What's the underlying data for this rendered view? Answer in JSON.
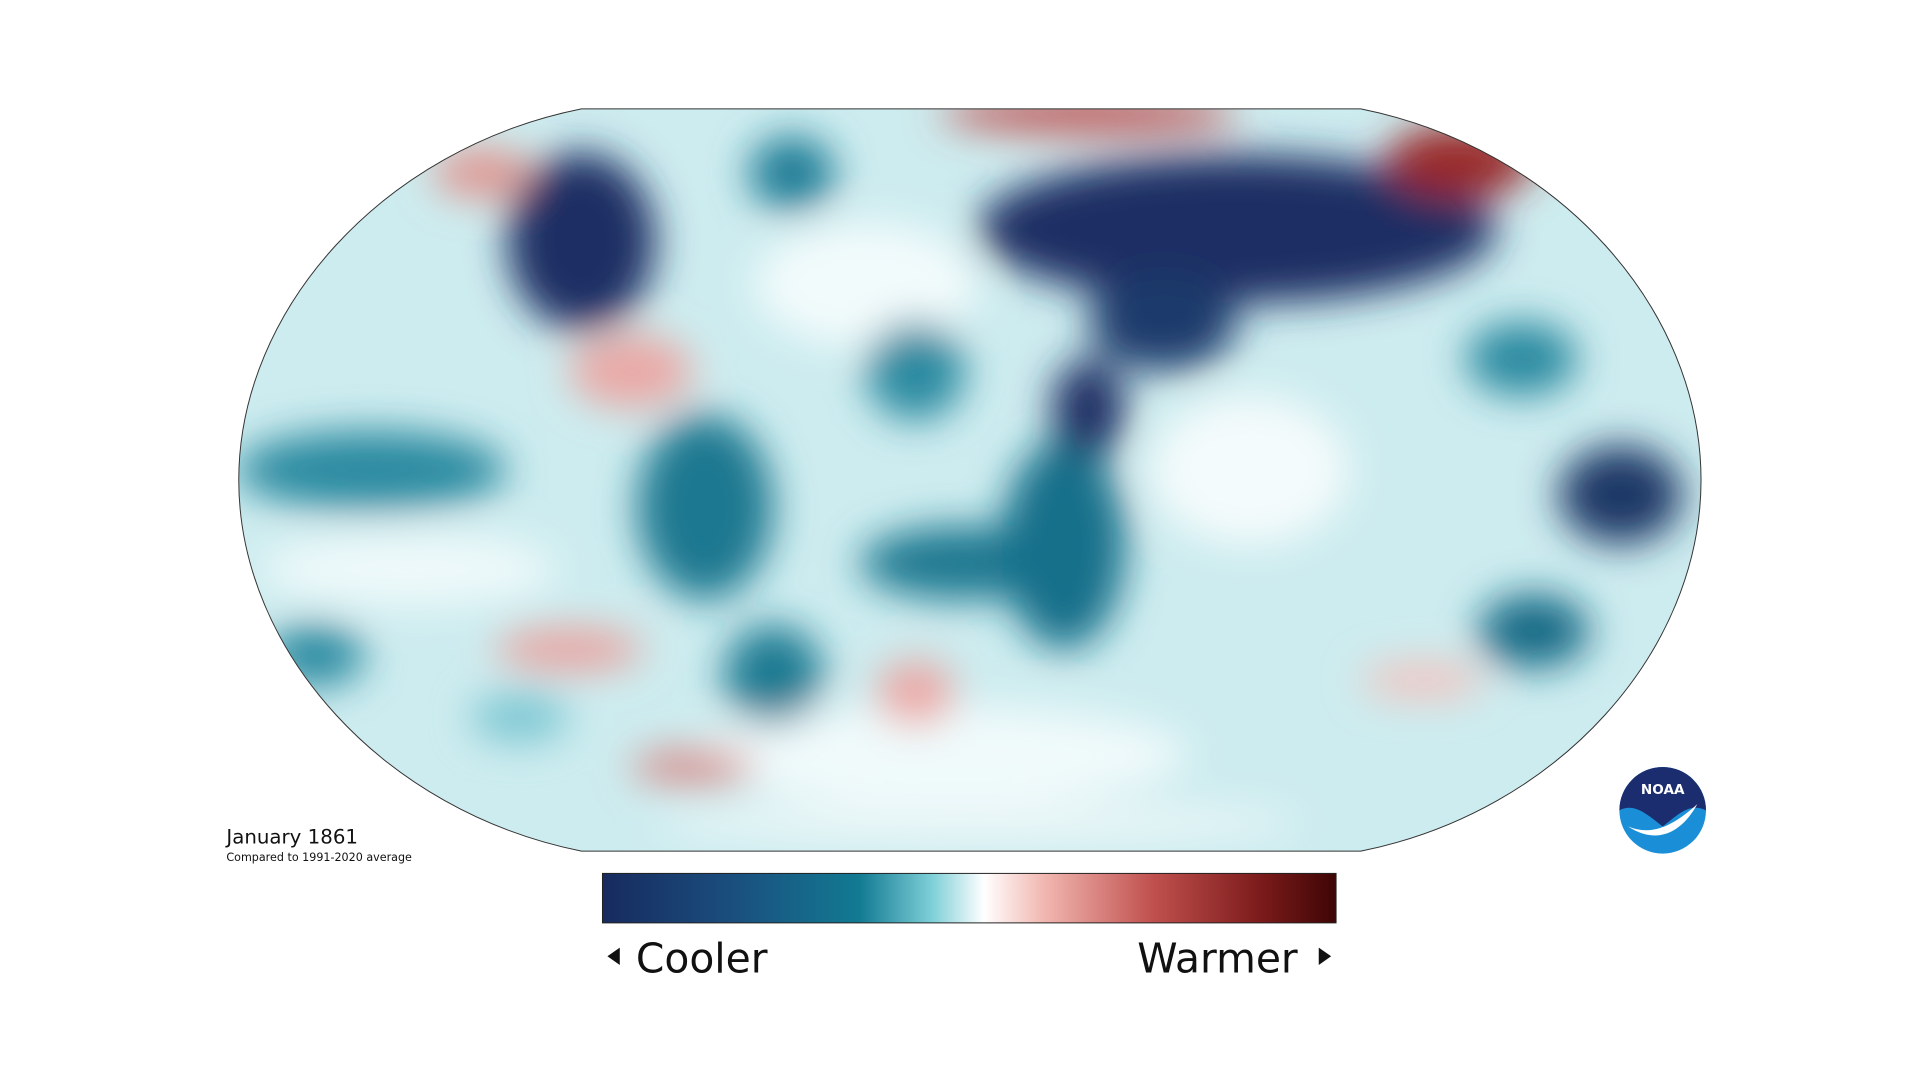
{
  "map": {
    "title": "January 1861",
    "subtitle": "Compared to 1991-2020 average",
    "legend": {
      "low": "Cooler",
      "high": "Warmer"
    },
    "logo": "NOAA"
  }
}
